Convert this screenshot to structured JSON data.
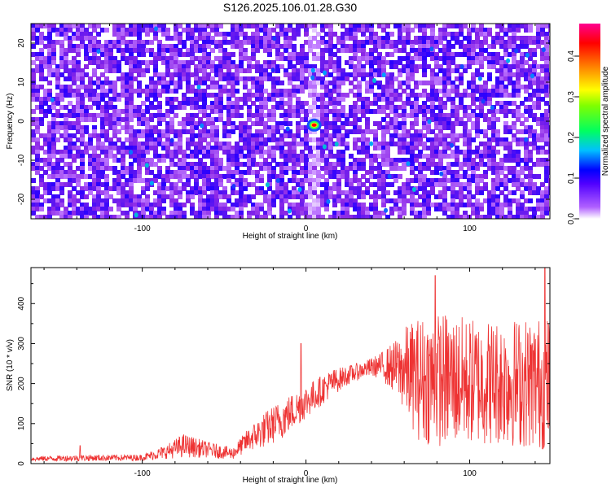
{
  "title": "S126.2025.106.01.28.G30",
  "chart_data": [
    {
      "type": "heatmap",
      "name": "spectrogram",
      "xlabel": "Height of straight line (km)",
      "ylabel": "Frequency (Hz)",
      "xlim": [
        -168,
        149
      ],
      "ylim": [
        -25,
        25
      ],
      "x_ticks": [
        -100,
        0,
        100
      ],
      "y_ticks": [
        20,
        10,
        0,
        -10,
        -20
      ],
      "colorbar": {
        "label": "Normalized spectral amplitude",
        "range": [
          0.0,
          0.48
        ],
        "ticks": [
          0.0,
          0.1,
          0.2,
          0.3,
          0.4
        ],
        "tick_labels": [
          "0.0",
          "0.1",
          "0.2",
          "0.3",
          "0.4"
        ],
        "colormap": "rainbow (white-violet-blue-cyan-green-yellow-orange-red-magenta)",
        "colors": [
          "#ffffff",
          "#8a2be2",
          "#0000ff",
          "#00c0ff",
          "#00ff00",
          "#ffff00",
          "#ff8000",
          "#ff0000",
          "#ff0080"
        ]
      },
      "features": [
        {
          "desc": "noise field of normalized amplitude mostly 0.03-0.08 (violet/purple blobs)",
          "x": [
            -168,
            149
          ],
          "y": [
            -25,
            25
          ],
          "value": 0.06
        },
        {
          "desc": "low-amplitude vertical band",
          "x": [
            0,
            8
          ],
          "y": [
            -25,
            25
          ],
          "value": 0.01
        },
        {
          "desc": "peak",
          "x": 5,
          "y": -1,
          "value": 0.42
        }
      ]
    },
    {
      "type": "line",
      "name": "snr",
      "xlabel": "Height of straight line (km)",
      "ylabel": "SNR (10 * v/v)",
      "xlim": [
        -168,
        149
      ],
      "ylim": [
        0,
        490
      ],
      "x_ticks": [
        -100,
        0,
        100
      ],
      "y_ticks": [
        0,
        100,
        200,
        300,
        400
      ],
      "color": "#ee3333",
      "envelope": {
        "x": [
          -168,
          -140,
          -100,
          -85,
          -75,
          -60,
          -45,
          -35,
          -25,
          -15,
          -5,
          5,
          15,
          25,
          35,
          45,
          55,
          62,
          70,
          85,
          100,
          120,
          149
        ],
        "center": [
          12,
          14,
          15,
          30,
          45,
          35,
          25,
          60,
          85,
          110,
          140,
          170,
          200,
          220,
          235,
          245,
          240,
          230,
          210,
          210,
          205,
          205,
          200
        ],
        "spread": [
          6,
          8,
          8,
          18,
          30,
          20,
          15,
          30,
          45,
          50,
          45,
          40,
          35,
          25,
          20,
          30,
          70,
          120,
          160,
          170,
          160,
          160,
          170
        ]
      },
      "spikes": [
        {
          "x": -138,
          "y": 45
        },
        {
          "x": -3,
          "y": 300
        },
        {
          "x": 79,
          "y": 470
        },
        {
          "x": 146,
          "y": 490
        }
      ]
    }
  ]
}
